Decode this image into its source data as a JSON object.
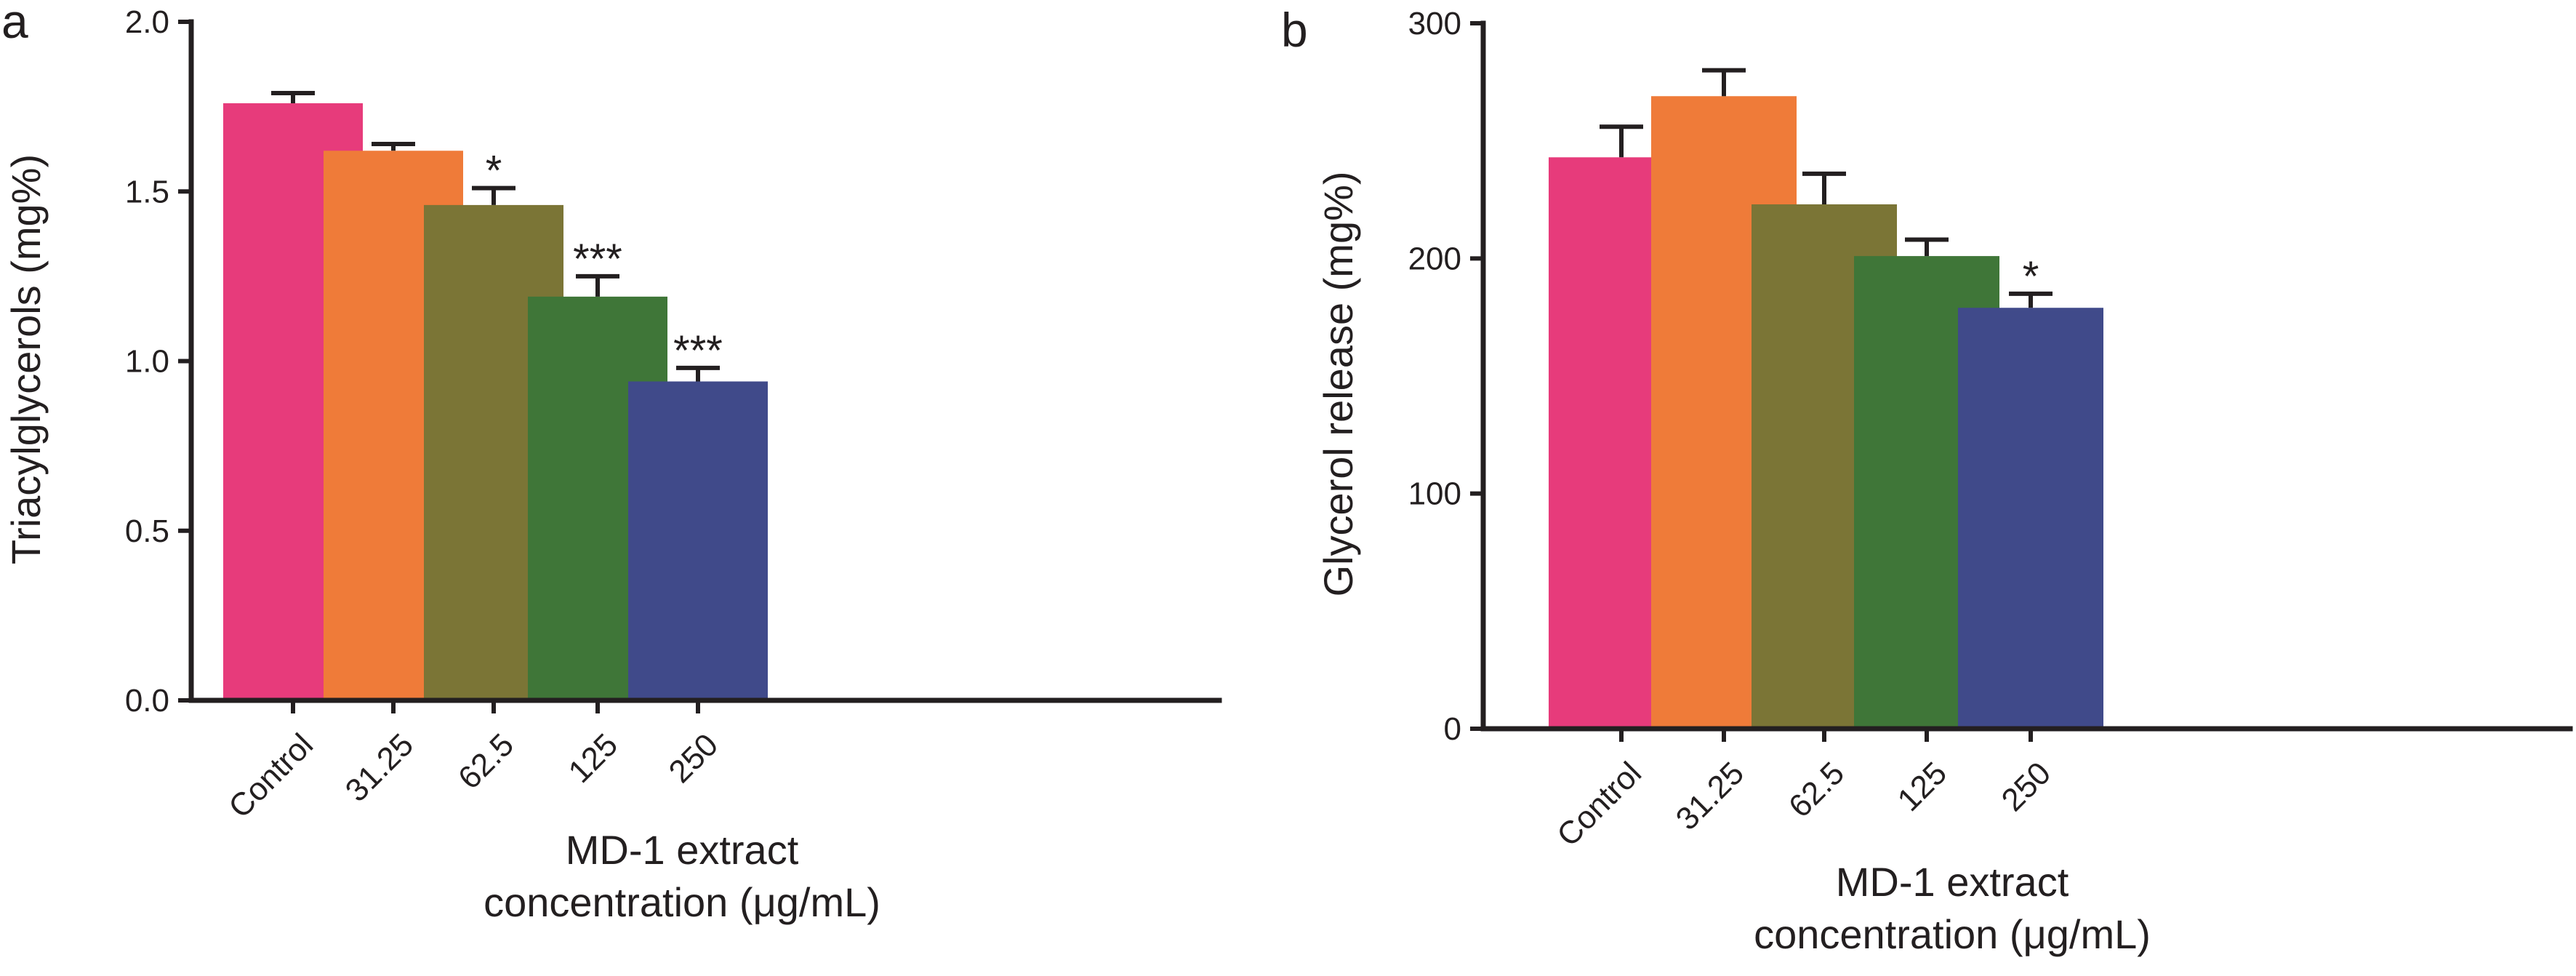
{
  "colors": {
    "Control": "#e73b7b",
    "31.25": "#ef7b39",
    "62.5": "#7b7536",
    "125": "#3f7638",
    "250": "#404a8a",
    "axis": "#231f20"
  },
  "chart_data": [
    {
      "type": "bar",
      "panel": "a",
      "categories": [
        "Control",
        "31.25",
        "62.5",
        "125",
        "250"
      ],
      "values": [
        1.76,
        1.62,
        1.46,
        1.19,
        0.94
      ],
      "errors": [
        0.03,
        0.02,
        0.05,
        0.06,
        0.04
      ],
      "significance": [
        "",
        "",
        "*",
        "***",
        "***"
      ],
      "ylabel": "Triacylglycerols (mg%)",
      "xlabel_line1": "MD-1 extract",
      "xlabel_line2": "concentration (μg/mL)",
      "ylim": [
        0,
        2.0
      ],
      "yticks": [
        0.0,
        0.5,
        1.0,
        1.5,
        2.0
      ],
      "ytick_labels": [
        "0.0",
        "0.5",
        "1.0",
        "1.5",
        "2.0"
      ]
    },
    {
      "type": "bar",
      "panel": "b",
      "categories": [
        "Control",
        "31.25",
        "62.5",
        "125",
        "250"
      ],
      "values": [
        243,
        269,
        223,
        201,
        179
      ],
      "errors": [
        13,
        11,
        13,
        7,
        6
      ],
      "significance": [
        "",
        "",
        "",
        "",
        "*"
      ],
      "ylabel": "Glycerol release (mg%)",
      "xlabel_line1": "MD-1 extract",
      "xlabel_line2": "concentration (μg/mL)",
      "ylim": [
        0,
        300
      ],
      "yticks": [
        0,
        100,
        200,
        300
      ],
      "ytick_labels": [
        "0",
        "100",
        "200",
        "300"
      ]
    }
  ]
}
